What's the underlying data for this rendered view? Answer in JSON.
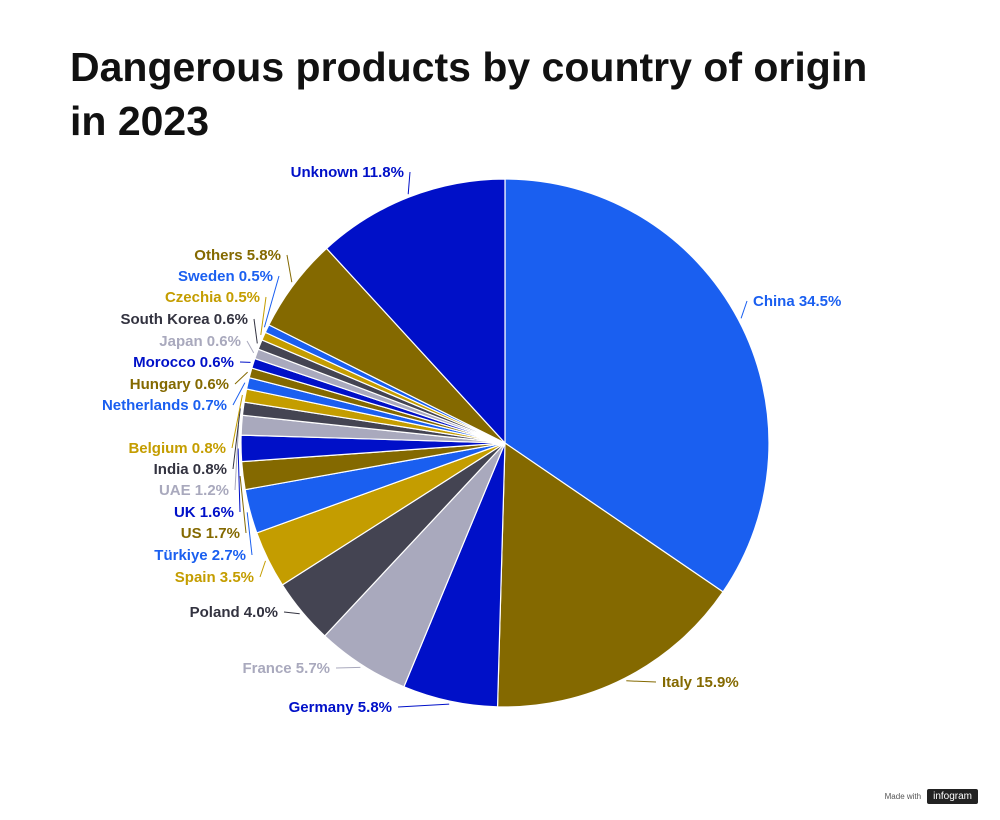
{
  "chart_data": {
    "type": "pie",
    "title": "Dangerous products by country of origin in 2023",
    "slices": [
      {
        "label": "China",
        "value": 34.5,
        "display": "China 34.5%",
        "color": "#1a5ff0",
        "text_color": "#1a5ff0"
      },
      {
        "label": "Italy",
        "value": 15.9,
        "display": "Italy 15.9%",
        "color": "#846900",
        "text_color": "#846900"
      },
      {
        "label": "Germany",
        "value": 5.8,
        "display": "Germany 5.8%",
        "color": "#0010c8",
        "text_color": "#0010c8"
      },
      {
        "label": "France",
        "value": 5.7,
        "display": "France 5.7%",
        "color": "#a9a9bd",
        "text_color": "#a9a9bd"
      },
      {
        "label": "Poland",
        "value": 4.0,
        "display": "Poland 4.0%",
        "color": "#444452",
        "text_color": "#333340"
      },
      {
        "label": "Spain",
        "value": 3.5,
        "display": "Spain 3.5%",
        "color": "#c49d00",
        "text_color": "#c49d00"
      },
      {
        "label": "Türkiye",
        "value": 2.7,
        "display": "Türkiye 2.7%",
        "color": "#1a5ff0",
        "text_color": "#1a5ff0"
      },
      {
        "label": "US",
        "value": 1.7,
        "display": "US 1.7%",
        "color": "#846900",
        "text_color": "#846900"
      },
      {
        "label": "UK",
        "value": 1.6,
        "display": "UK 1.6%",
        "color": "#0010c8",
        "text_color": "#0010c8"
      },
      {
        "label": "UAE",
        "value": 1.2,
        "display": "UAE 1.2%",
        "color": "#a9a9bd",
        "text_color": "#a9a9bd"
      },
      {
        "label": "India",
        "value": 0.8,
        "display": "India 0.8%",
        "color": "#444452",
        "text_color": "#333340"
      },
      {
        "label": "Belgium",
        "value": 0.8,
        "display": "Belgium 0.8%",
        "color": "#c49d00",
        "text_color": "#c49d00"
      },
      {
        "label": "Netherlands",
        "value": 0.7,
        "display": "Netherlands 0.7%",
        "color": "#1a5ff0",
        "text_color": "#1a5ff0"
      },
      {
        "label": "Hungary",
        "value": 0.6,
        "display": "Hungary 0.6%",
        "color": "#846900",
        "text_color": "#846900"
      },
      {
        "label": "Morocco",
        "value": 0.6,
        "display": "Morocco 0.6%",
        "color": "#0010c8",
        "text_color": "#0010c8"
      },
      {
        "label": "Japan",
        "value": 0.6,
        "display": "Japan 0.6%",
        "color": "#a9a9bd",
        "text_color": "#a9a9bd"
      },
      {
        "label": "South Korea",
        "value": 0.6,
        "display": "South Korea 0.6%",
        "color": "#444452",
        "text_color": "#333340"
      },
      {
        "label": "Czechia",
        "value": 0.5,
        "display": "Czechia 0.5%",
        "color": "#c49d00",
        "text_color": "#c49d00"
      },
      {
        "label": "Sweden",
        "value": 0.5,
        "display": "Sweden 0.5%",
        "color": "#1a5ff0",
        "text_color": "#1a5ff0"
      },
      {
        "label": "Others",
        "value": 5.8,
        "display": "Others 5.8%",
        "color": "#846900",
        "text_color": "#846900"
      },
      {
        "label": "Unknown",
        "value": 11.8,
        "display": "Unknown 11.8%",
        "color": "#0010c8",
        "text_color": "#0010c8"
      }
    ]
  },
  "footer": {
    "made_with": "Made with",
    "brand": "infogram"
  }
}
